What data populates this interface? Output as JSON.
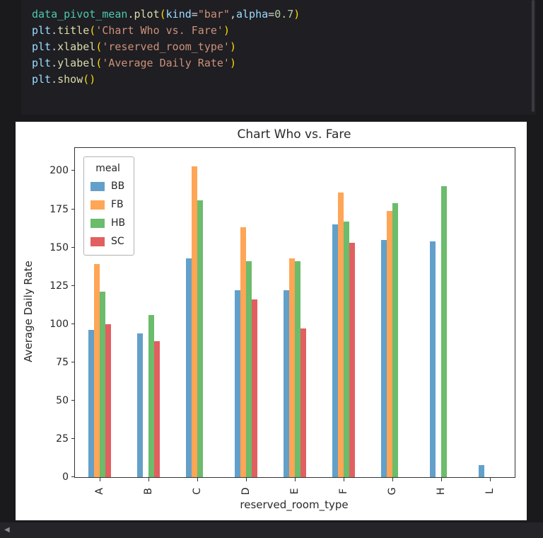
{
  "window": {
    "scroll_left_icon": "◀"
  },
  "code": {
    "language": "python",
    "token_colors": {
      "var": "#4EC9B0",
      "mod": "#9CDCFE",
      "fn": "#DCDCAA",
      "param": "#9CDCFE",
      "str": "#CE9178",
      "num": "#B5CEA8",
      "pun": "#D4D4D4",
      "brk": "#FFD70A"
    },
    "lines": [
      [
        {
          "t": "data_pivot_mean",
          "c": "var"
        },
        {
          "t": ".",
          "c": "pun"
        },
        {
          "t": "plot",
          "c": "fn"
        },
        {
          "t": "(",
          "c": "brk"
        },
        {
          "t": "kind",
          "c": "param"
        },
        {
          "t": "=",
          "c": "pun"
        },
        {
          "t": "\"bar\"",
          "c": "str"
        },
        {
          "t": ",",
          "c": "pun"
        },
        {
          "t": "alpha",
          "c": "param"
        },
        {
          "t": "=",
          "c": "pun"
        },
        {
          "t": "0.7",
          "c": "num"
        },
        {
          "t": ")",
          "c": "brk"
        }
      ],
      [
        {
          "t": "plt",
          "c": "mod"
        },
        {
          "t": ".",
          "c": "pun"
        },
        {
          "t": "title",
          "c": "fn"
        },
        {
          "t": "(",
          "c": "brk"
        },
        {
          "t": "'Chart Who vs. Fare'",
          "c": "str"
        },
        {
          "t": ")",
          "c": "brk"
        }
      ],
      [
        {
          "t": "plt",
          "c": "mod"
        },
        {
          "t": ".",
          "c": "pun"
        },
        {
          "t": "xlabel",
          "c": "fn"
        },
        {
          "t": "(",
          "c": "brk"
        },
        {
          "t": "'reserved_room_type'",
          "c": "str"
        },
        {
          "t": ")",
          "c": "brk"
        }
      ],
      [
        {
          "t": "plt",
          "c": "mod"
        },
        {
          "t": ".",
          "c": "pun"
        },
        {
          "t": "ylabel",
          "c": "fn"
        },
        {
          "t": "(",
          "c": "brk"
        },
        {
          "t": "'Average Daily Rate'",
          "c": "str"
        },
        {
          "t": ")",
          "c": "brk"
        }
      ],
      [
        {
          "t": "plt",
          "c": "mod"
        },
        {
          "t": ".",
          "c": "pun"
        },
        {
          "t": "show",
          "c": "fn"
        },
        {
          "t": "(",
          "c": "brk"
        },
        {
          "t": ")",
          "c": "brk"
        }
      ]
    ]
  },
  "chart_data": {
    "type": "bar",
    "title": "Chart Who vs. Fare",
    "xlabel": "reserved_room_type",
    "ylabel": "Average Daily Rate",
    "legend_title": "meal",
    "legend_position": "upper left",
    "grid": false,
    "alpha": 0.7,
    "ylim": [
      0,
      215
    ],
    "yticks": [
      0,
      25,
      50,
      75,
      100,
      125,
      150,
      175,
      200
    ],
    "categories": [
      "A",
      "B",
      "C",
      "D",
      "E",
      "F",
      "G",
      "H",
      "L"
    ],
    "series": [
      {
        "name": "BB",
        "color": "#62A0CA",
        "values": [
          96,
          94,
          143,
          122,
          122,
          165,
          155,
          154,
          8
        ]
      },
      {
        "name": "FB",
        "color": "#FFA556",
        "values": [
          139,
          null,
          203,
          163,
          143,
          186,
          174,
          null,
          null
        ]
      },
      {
        "name": "HB",
        "color": "#6BBC6B",
        "values": [
          121,
          106,
          181,
          141,
          141,
          167,
          179,
          190,
          null
        ]
      },
      {
        "name": "SC",
        "color": "#E25F60",
        "values": [
          100,
          89,
          null,
          116,
          97,
          153,
          null,
          null,
          null
        ]
      }
    ]
  }
}
